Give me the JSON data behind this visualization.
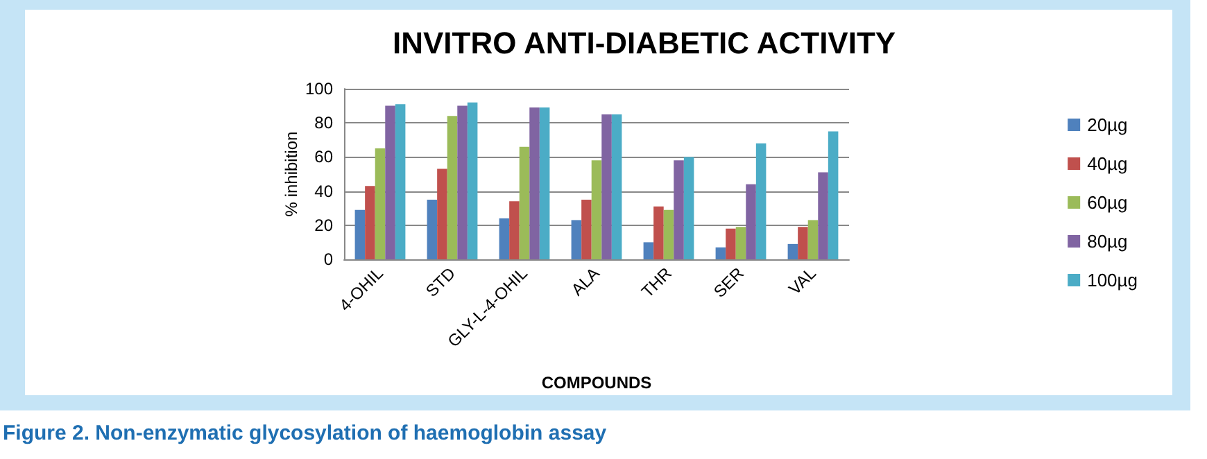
{
  "chart_data": {
    "type": "bar",
    "title": "INVITRO ANTI-DIABETIC ACTIVITY",
    "xlabel": "COMPOUNDS",
    "ylabel": "% inhibition",
    "categories": [
      "4-OHIL",
      "STD",
      "GLY-L-4-OHIL",
      "ALA",
      "THR",
      "SER",
      "VAL"
    ],
    "series": [
      {
        "name": "20µg",
        "color": "#4f81bd",
        "values": [
          29,
          35,
          24,
          23,
          10,
          7,
          9
        ]
      },
      {
        "name": "40µg",
        "color": "#c0504d",
        "values": [
          43,
          53,
          34,
          35,
          31,
          18,
          19
        ]
      },
      {
        "name": "60µg",
        "color": "#9bbb59",
        "values": [
          65,
          84,
          66,
          58,
          29,
          19,
          23
        ]
      },
      {
        "name": "80µg",
        "color": "#8064a2",
        "values": [
          90,
          90,
          89,
          85,
          58,
          44,
          51
        ]
      },
      {
        "name": "100µg",
        "color": "#4bacc6",
        "values": [
          91,
          92,
          89,
          85,
          60,
          68,
          75
        ]
      }
    ],
    "ylim": [
      0,
      100
    ],
    "yticks": [
      0,
      20,
      40,
      60,
      80,
      100
    ],
    "grid": "y",
    "legend": "right",
    "annotations": [
      "Figure 2. Non-enzymatic glycosylation of haemoglobin assay"
    ]
  }
}
